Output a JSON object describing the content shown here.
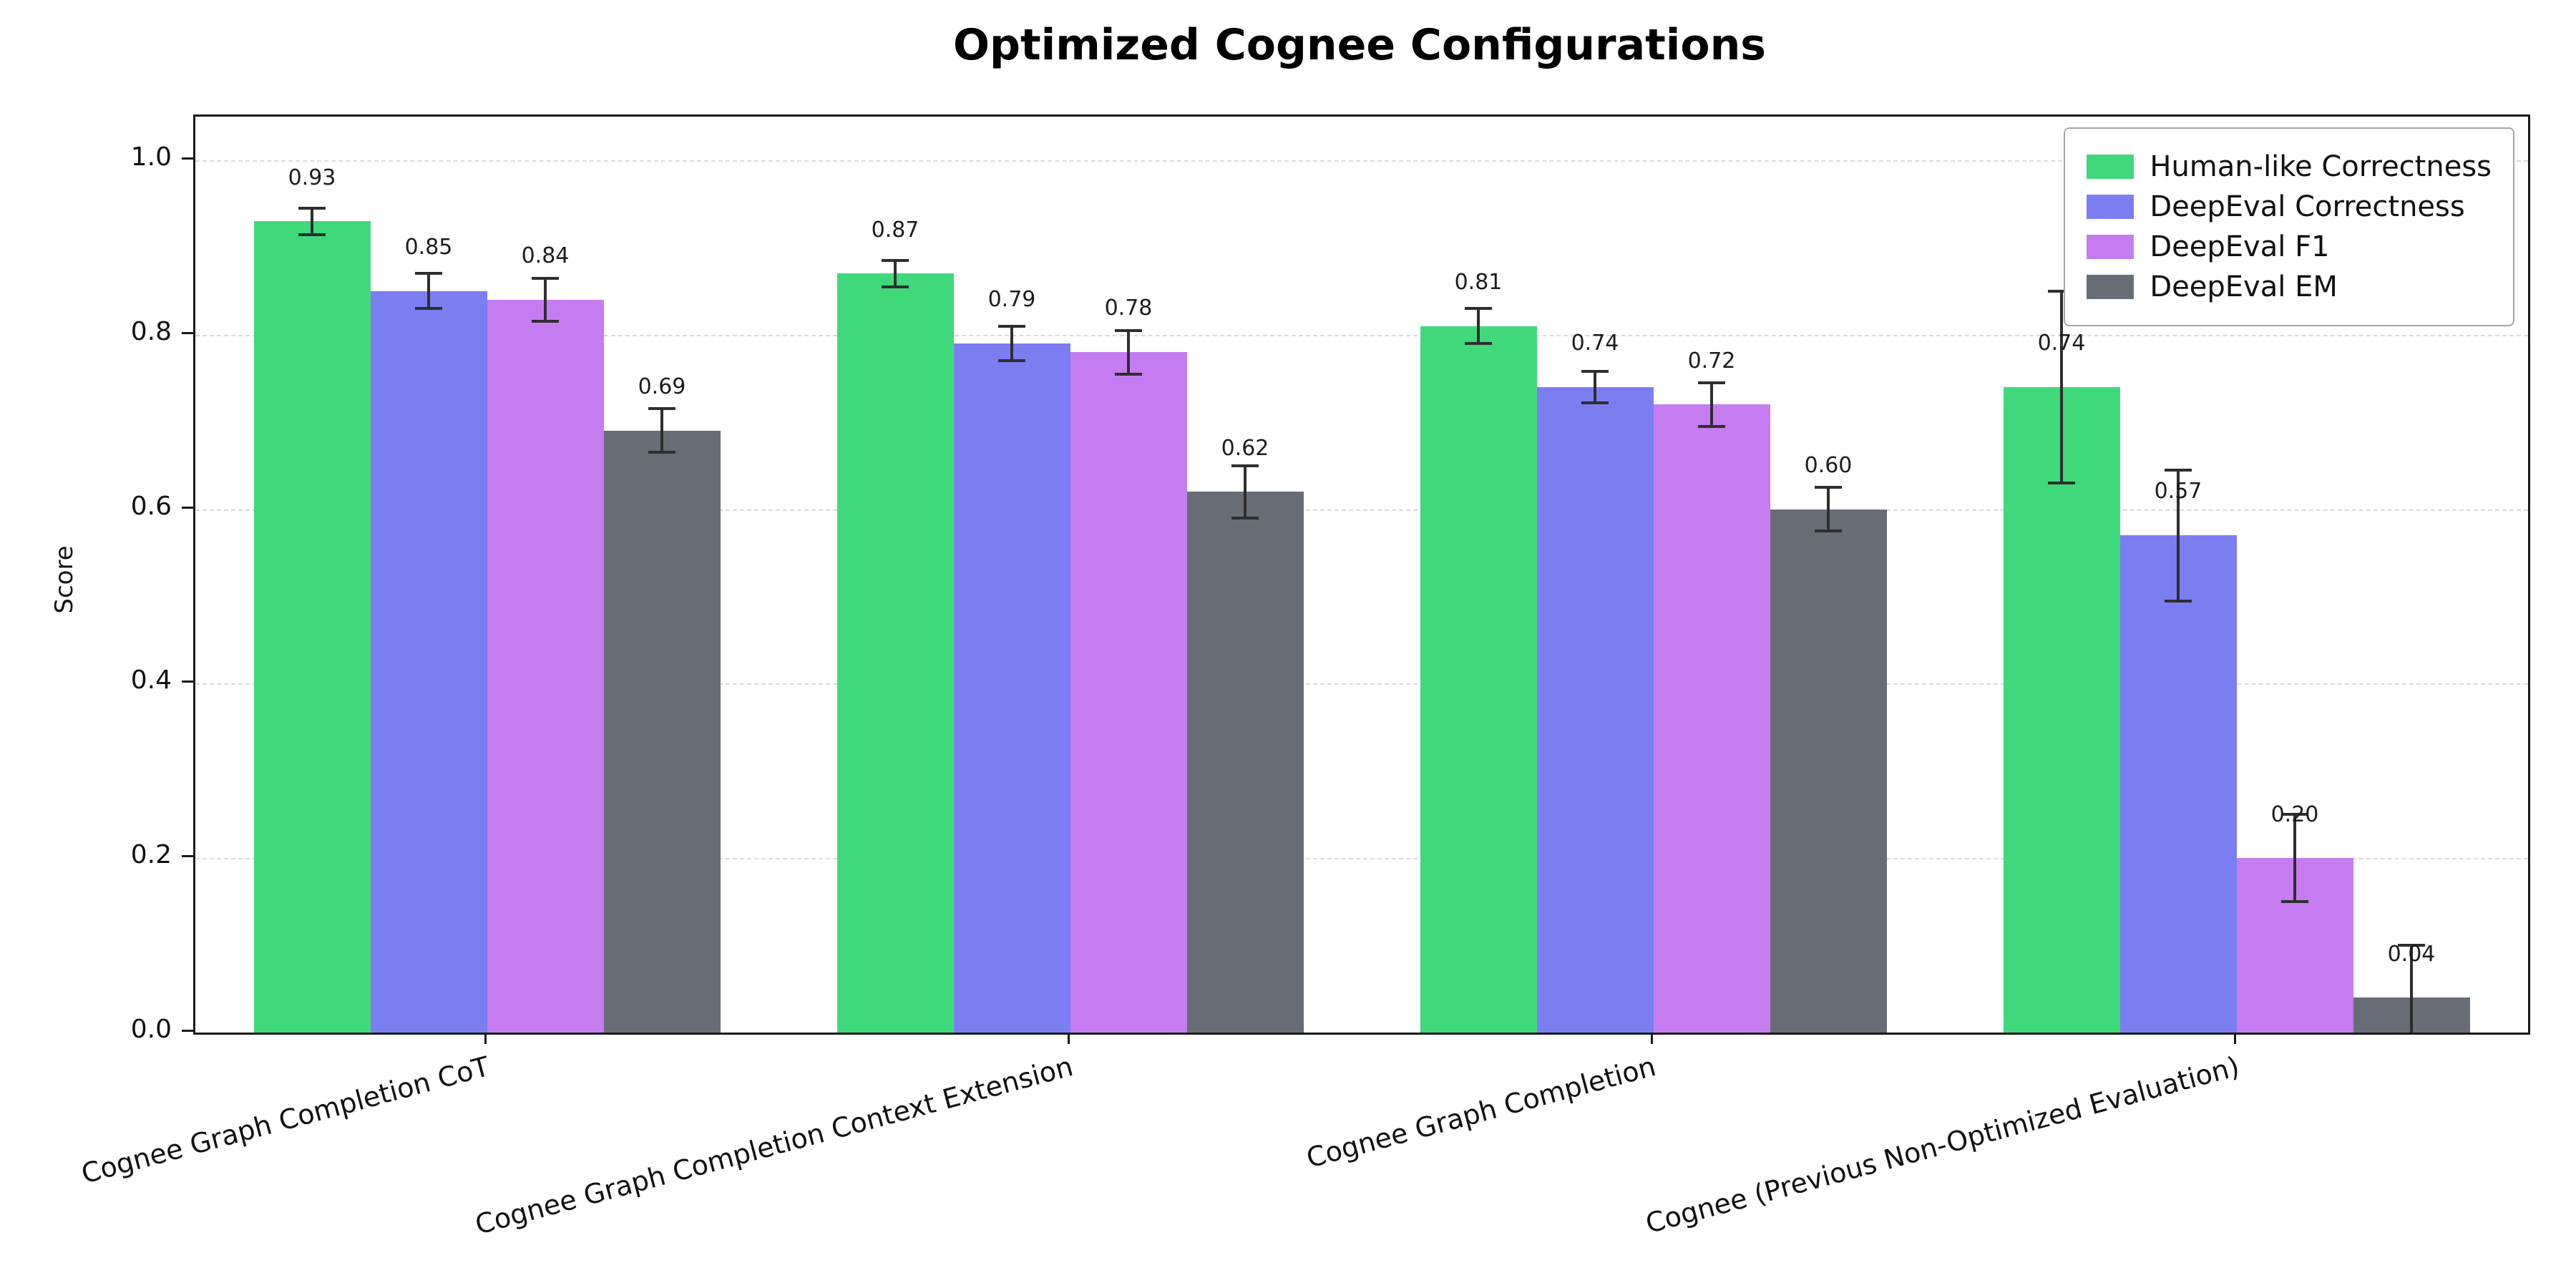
{
  "title": "Optimized Cognee Configurations",
  "chart_data": {
    "type": "bar",
    "title": "Optimized Cognee Configurations",
    "xlabel": "",
    "ylabel": "Score",
    "ylim": [
      0,
      1.05
    ],
    "yticks": [
      0.0,
      0.2,
      0.4,
      0.6,
      0.8,
      1.0
    ],
    "grid": "dashed-horizontal",
    "legend_position": "upper-right",
    "error_bars": true,
    "categories": [
      "Cognee Graph Completion CoT",
      "Cognee Graph Completion Context Extension",
      "Cognee Graph Completion",
      "Cognee (Previous Non-Optimized Evaluation)"
    ],
    "series": [
      {
        "name": "Human-like Correctness",
        "color": "#3fd97c",
        "values": [
          0.93,
          0.87,
          0.81,
          0.74
        ],
        "errors": [
          0.015,
          0.015,
          0.02,
          0.11
        ]
      },
      {
        "name": "DeepEval Correctness",
        "color": "#7b7ef0",
        "values": [
          0.85,
          0.79,
          0.74,
          0.57
        ],
        "errors": [
          0.02,
          0.02,
          0.018,
          0.075
        ]
      },
      {
        "name": "DeepEval F1",
        "color": "#c57cf0",
        "values": [
          0.84,
          0.78,
          0.72,
          0.2
        ],
        "errors": [
          0.025,
          0.025,
          0.025,
          0.05
        ]
      },
      {
        "name": "DeepEval EM",
        "color": "#686c75",
        "values": [
          0.69,
          0.62,
          0.6,
          0.04
        ],
        "errors": [
          0.025,
          0.03,
          0.025,
          0.06
        ]
      }
    ]
  }
}
